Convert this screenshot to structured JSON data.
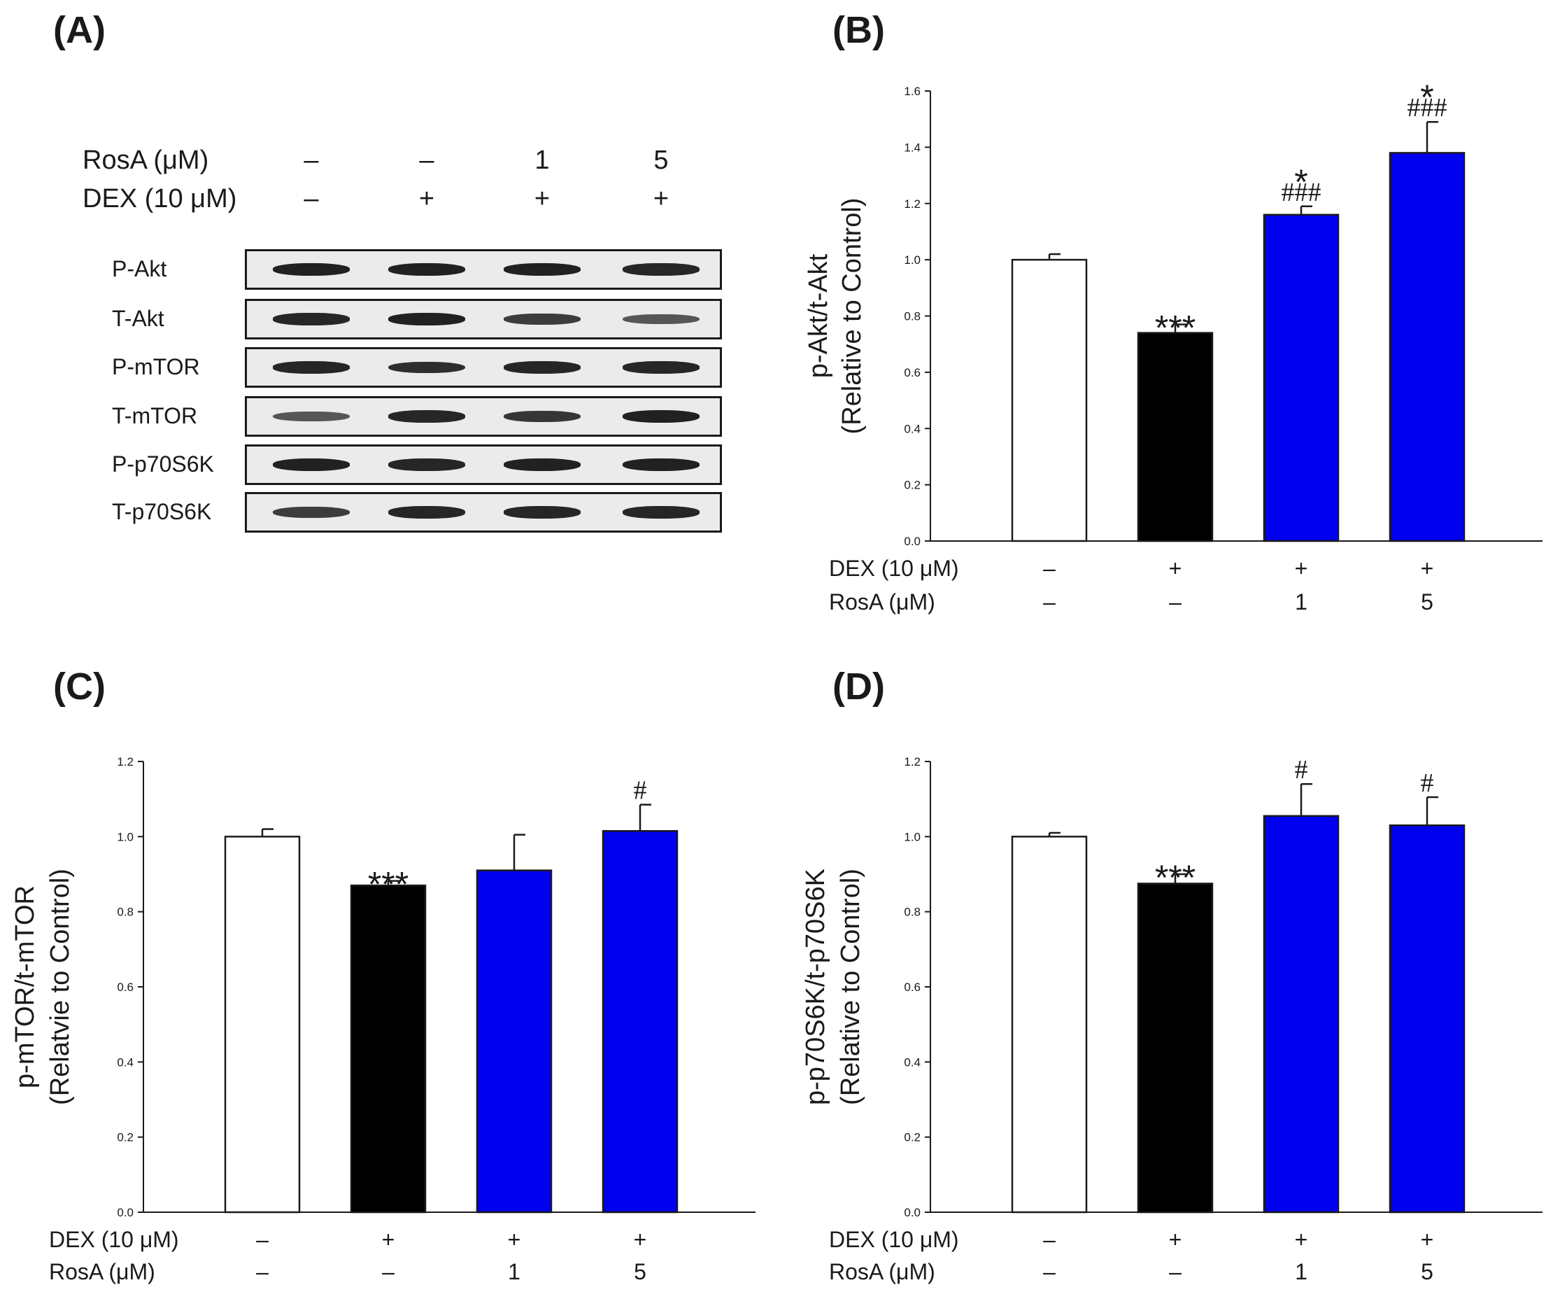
{
  "panel_labels": {
    "a": "(A)",
    "b": "(B)",
    "c": "(C)",
    "d": "(D)"
  },
  "blot": {
    "header_rows": [
      {
        "label": "RosA (μM)",
        "values": [
          "–",
          "–",
          "1",
          "5"
        ]
      },
      {
        "label": "DEX (10 μM)",
        "values": [
          "–",
          "+",
          "+",
          "+"
        ]
      }
    ],
    "proteins": [
      "P-Akt",
      "T-Akt",
      "P-mTOR",
      "T-mTOR",
      "P-p70S6K",
      "T-p70S6K"
    ],
    "band_intensity": [
      [
        0.95,
        0.95,
        0.95,
        0.9
      ],
      [
        0.9,
        0.95,
        0.75,
        0.55
      ],
      [
        0.9,
        0.85,
        0.9,
        0.9
      ],
      [
        0.55,
        0.9,
        0.8,
        0.95
      ],
      [
        0.95,
        0.9,
        0.95,
        0.95
      ],
      [
        0.75,
        0.9,
        0.9,
        0.9
      ]
    ]
  },
  "colors": {
    "control": "#ffffff",
    "dex": "#000000",
    "rosa": "#0000ee",
    "axis": "#1a1a1a",
    "band": "#1a1a1a"
  },
  "chart_data": [
    {
      "id": "B",
      "type": "bar",
      "ylabel_line1": "p-Akt/t-Akt",
      "ylabel_line2": "(Relative to Control)",
      "ylim": [
        0,
        1.6
      ],
      "yticks": [
        "0.0",
        "0.2",
        "0.4",
        "0.6",
        "0.8",
        "1.0",
        "1.2",
        "1.4",
        "1.6"
      ],
      "values": [
        1.0,
        0.74,
        1.16,
        1.38
      ],
      "errors": [
        0.02,
        0.03,
        0.03,
        0.11
      ],
      "bar_colors": [
        "control",
        "dex",
        "rosa",
        "rosa"
      ],
      "annotations": [
        [],
        [
          "***"
        ],
        [
          "###",
          "*"
        ],
        [
          "###",
          "*"
        ]
      ],
      "conditions": [
        {
          "label": "DEX (10 μM)",
          "values": [
            "–",
            "+",
            "+",
            "+"
          ]
        },
        {
          "label": "RosA (μM)",
          "values": [
            "–",
            "–",
            "1",
            "5"
          ]
        }
      ]
    },
    {
      "id": "C",
      "type": "bar",
      "ylabel_line1": "p-mTOR/t-mTOR",
      "ylabel_line2": "(Relatvie to Control)",
      "ylim": [
        0,
        1.2
      ],
      "yticks": [
        "0.0",
        "0.2",
        "0.4",
        "0.6",
        "0.8",
        "1.0",
        "1.2"
      ],
      "values": [
        1.0,
        0.87,
        0.91,
        1.015
      ],
      "errors": [
        0.02,
        0.012,
        0.095,
        0.07
      ],
      "bar_colors": [
        "control",
        "dex",
        "rosa",
        "rosa"
      ],
      "annotations": [
        [],
        [
          "***"
        ],
        [],
        [
          "#"
        ]
      ],
      "conditions": [
        {
          "label": "DEX (10 μM)",
          "values": [
            "–",
            "+",
            "+",
            "+"
          ]
        },
        {
          "label": "RosA (μM)",
          "values": [
            "–",
            "–",
            "1",
            "5"
          ]
        }
      ]
    },
    {
      "id": "D",
      "type": "bar",
      "ylabel_line1": "p-p70S6K/t-p70S6K",
      "ylabel_line2": "(Relative to Control)",
      "ylim": [
        0,
        1.2
      ],
      "yticks": [
        "0.0",
        "0.2",
        "0.4",
        "0.6",
        "0.8",
        "1.0",
        "1.2"
      ],
      "values": [
        1.0,
        0.875,
        1.055,
        1.03
      ],
      "errors": [
        0.01,
        0.025,
        0.085,
        0.075
      ],
      "bar_colors": [
        "control",
        "dex",
        "rosa",
        "rosa"
      ],
      "annotations": [
        [],
        [
          "***"
        ],
        [
          "#"
        ],
        [
          "#"
        ]
      ],
      "conditions": [
        {
          "label": "DEX (10 μM)",
          "values": [
            "–",
            "+",
            "+",
            "+"
          ]
        },
        {
          "label": "RosA (μM)",
          "values": [
            "–",
            "–",
            "1",
            "5"
          ]
        }
      ]
    }
  ]
}
